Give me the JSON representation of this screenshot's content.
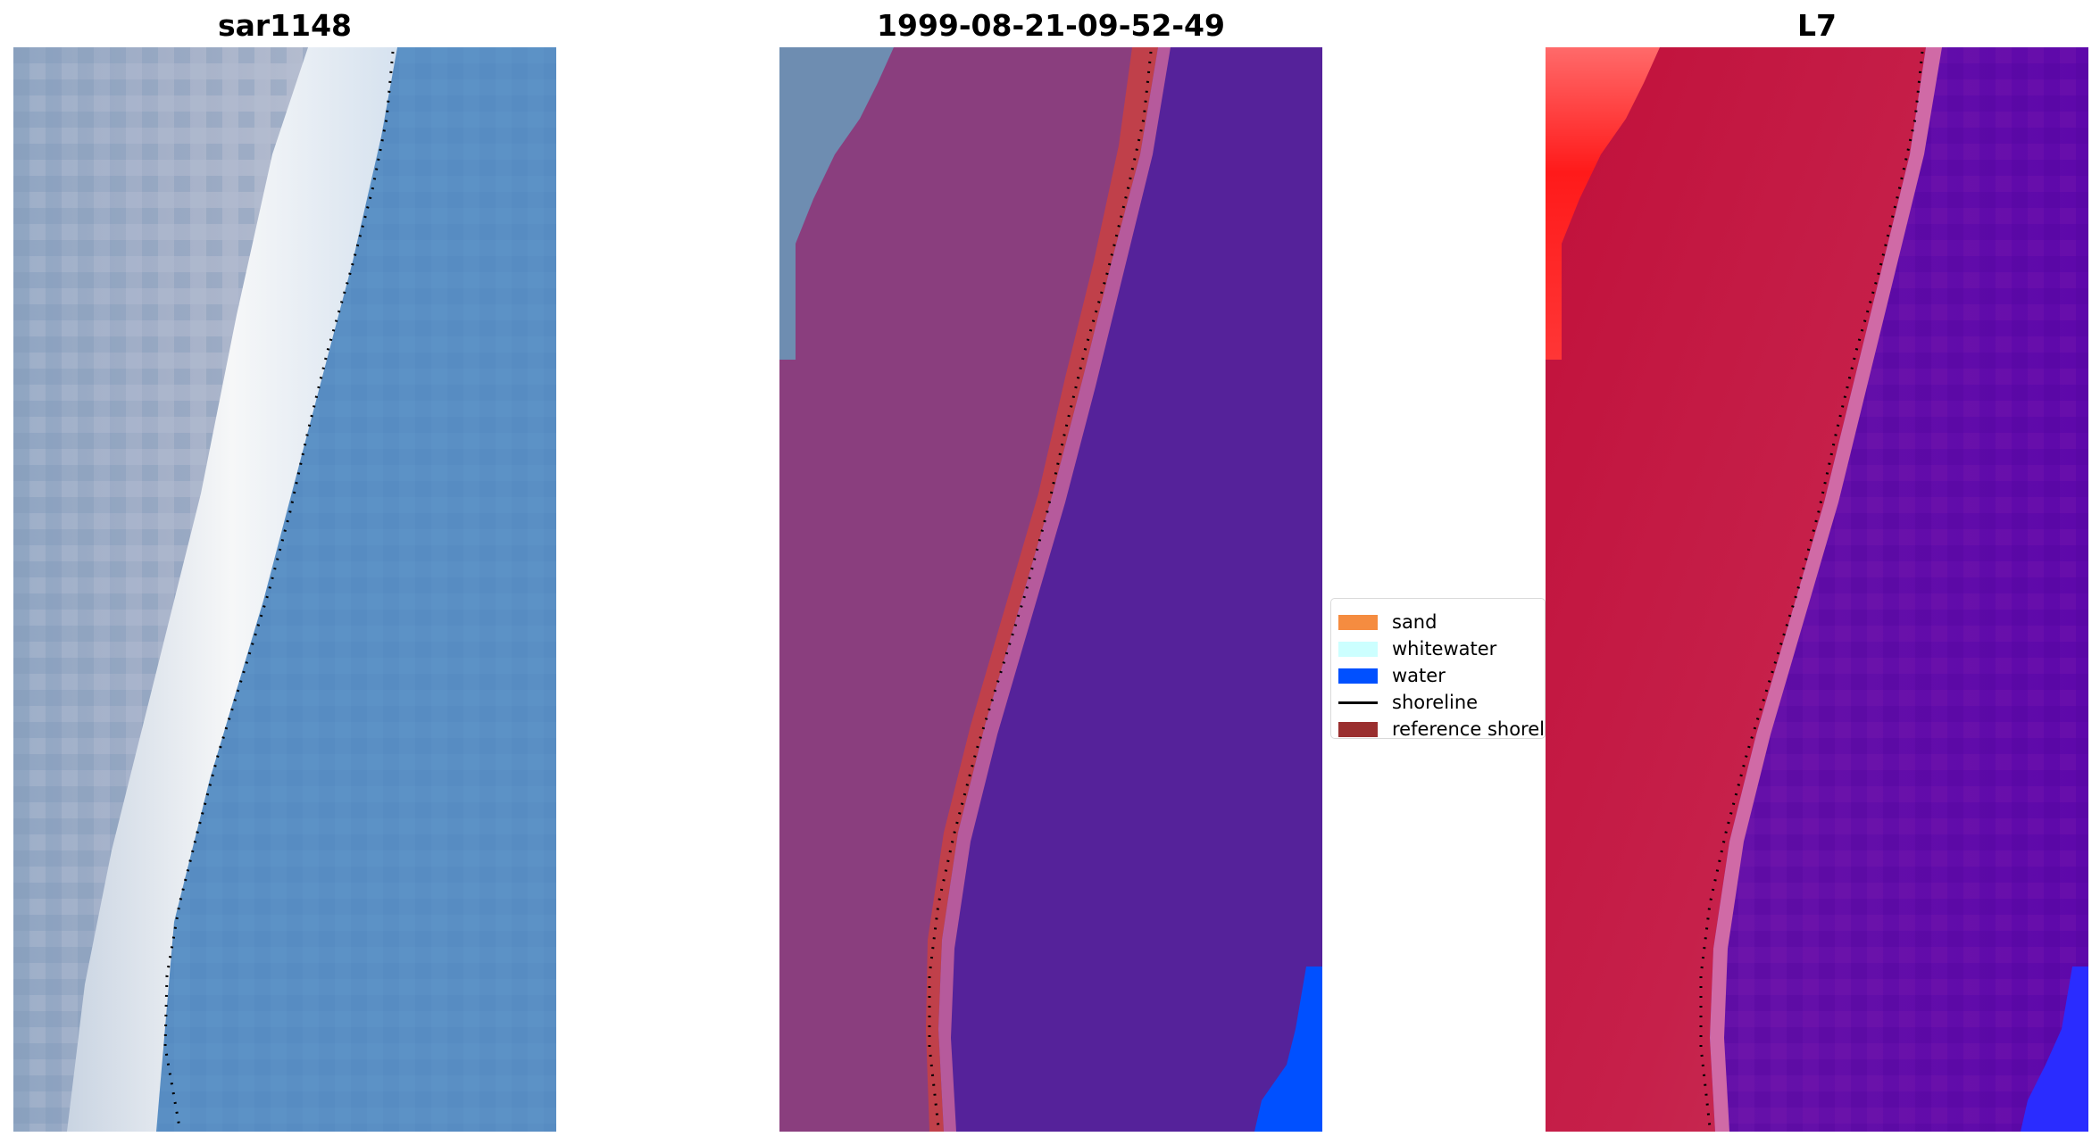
{
  "panels": [
    {
      "title": "sar1148"
    },
    {
      "title": "1999-08-21-09-52-49"
    },
    {
      "title": "L7"
    }
  ],
  "legend": {
    "items": [
      {
        "label": "sand",
        "color": "#f58c40",
        "kind": "patch"
      },
      {
        "label": "whitewater",
        "color": "#ccffff",
        "kind": "patch"
      },
      {
        "label": "water",
        "color": "#0050ff",
        "kind": "patch"
      },
      {
        "label": "shoreline",
        "color": "#000000",
        "kind": "line"
      },
      {
        "label": "reference shoreline",
        "color": "#9a2f2f",
        "kind": "patch"
      }
    ]
  },
  "colors": {
    "rgb_water": "#5a8fc4",
    "rgb_land": "#98a8c4",
    "rgb_whitewater": "#f2f4f6",
    "classified_water": "#55229a",
    "classified_land": "#8a3e7e",
    "classified_reference": "#c0404a",
    "classified_edge": "#b65a9c",
    "mndwi_land": "#c41a45",
    "mndwi_water": "#620aa8",
    "mndwi_edge": "#d06aa6",
    "bright_red": "#ff2020",
    "bright_blue": "#1a4cff",
    "shoreline_dots": "#000000"
  }
}
